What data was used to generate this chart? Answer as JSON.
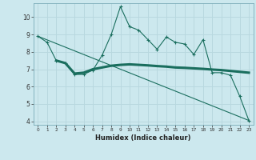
{
  "xlabel": "Humidex (Indice chaleur)",
  "ylabel": "",
  "bg_color": "#cce8ee",
  "grid_color": "#b8d8df",
  "line_color": "#1a6e5e",
  "xlim": [
    -0.5,
    23.5
  ],
  "ylim": [
    3.8,
    10.8
  ],
  "yticks": [
    4,
    5,
    6,
    7,
    8,
    9,
    10
  ],
  "xticks": [
    0,
    1,
    2,
    3,
    4,
    5,
    6,
    7,
    8,
    9,
    10,
    11,
    12,
    13,
    14,
    15,
    16,
    17,
    18,
    19,
    20,
    21,
    22,
    23
  ],
  "line1_x": [
    0,
    1,
    2,
    3,
    4,
    5,
    6,
    7,
    8,
    9,
    10,
    11,
    12,
    13,
    14,
    15,
    16,
    17,
    18,
    19,
    20,
    21,
    22,
    23
  ],
  "line1_y": [
    8.9,
    8.55,
    7.5,
    7.35,
    6.7,
    6.7,
    6.95,
    7.8,
    9.0,
    10.6,
    9.45,
    9.25,
    8.7,
    8.15,
    8.85,
    8.55,
    8.45,
    7.85,
    8.7,
    6.8,
    6.8,
    6.65,
    5.45,
    4.05
  ],
  "line2_x": [
    2,
    3,
    4,
    5,
    6,
    7,
    8,
    9,
    10,
    11,
    12,
    13,
    14,
    15,
    16,
    17,
    18,
    19,
    20,
    21,
    22,
    23
  ],
  "line2_y": [
    7.5,
    7.35,
    6.75,
    6.8,
    7.0,
    7.1,
    7.2,
    7.25,
    7.28,
    7.25,
    7.22,
    7.18,
    7.15,
    7.1,
    7.08,
    7.05,
    7.02,
    6.98,
    6.95,
    6.9,
    6.85,
    6.8
  ],
  "line3_x": [
    0,
    23
  ],
  "line3_y": [
    8.9,
    4.05
  ]
}
